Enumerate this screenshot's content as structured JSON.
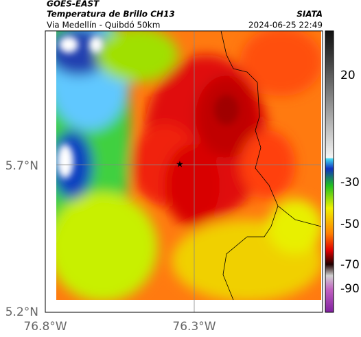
{
  "header": {
    "source": "GOES-EAST",
    "product": "Temperatura de Brillo CH13",
    "region": "Via Medellín - Quibdó 50km",
    "agency": "SIATA",
    "timestamp": "2024-06-25 22:49"
  },
  "lat_ticks": [
    {
      "value": 5.7,
      "label": "5.7°N"
    },
    {
      "value": 5.2,
      "label": "5.2°N"
    }
  ],
  "lon_ticks": [
    {
      "value": -76.8,
      "label": "76.8°W"
    },
    {
      "value": -76.3,
      "label": "76.3°W"
    }
  ],
  "colorbar_ticks": [
    20,
    -30,
    -50,
    -70,
    -90
  ]
}
